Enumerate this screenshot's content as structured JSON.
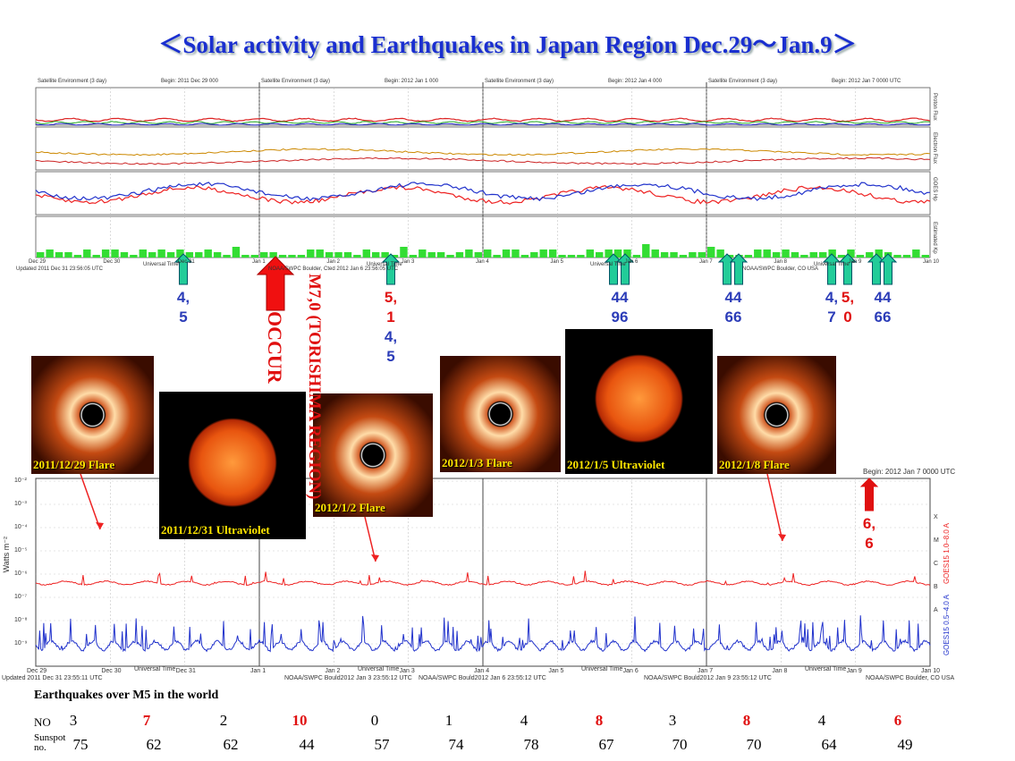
{
  "title": "＜Solar activity and Earthquakes  in Japan Region Dec.29～Jan.9＞",
  "top_panel": {
    "headers": [
      "Satellite Environment (3 day)",
      "Begin:  2011 Dec 29 000",
      "Satellite Environment (3 day)",
      "Begin:  2012 Jan 1 000",
      "Satellite Environment (3 day)",
      "Begin:  2012 Jan 4 000",
      "Satellite Environment (3 day)",
      "Begin:  2012 Jan 7 0000 UTC"
    ],
    "row_labels": [
      "Proton Flux",
      "Electron Flux",
      "GOES Hp",
      "Estimated Kp"
    ],
    "footers": [
      "Updated 2011 Dec 31 23:56:05 UTC",
      "NOAA/SWPC Boulder, Cted 2012 Jan  6 23:56:05 UTC",
      "NOAA/SWPC Boulder, CO USA"
    ],
    "axis_label": "Universal Time"
  },
  "days": [
    "Dec 29",
    "Dec 30",
    "Dec 31",
    "Jan 1",
    "Jan 2",
    "Jan 3",
    "Jan 4",
    "Jan 5",
    "Jan 6",
    "Jan 7",
    "Jan 8",
    "Jan 9",
    "Jan 10"
  ],
  "quake_marks": [
    {
      "lines": [
        "4,",
        "5"
      ],
      "line_colors": [
        "#2b3cb8",
        "#2b3cb8"
      ]
    },
    {
      "lines": [
        "5,",
        "1",
        "4,",
        "5"
      ],
      "line_colors": [
        "#e01010",
        "#e01010",
        "#2b3cb8",
        "#2b3cb8"
      ]
    },
    {
      "lines": [
        "44",
        "96"
      ],
      "line_colors": [
        "#2b3cb8",
        "#2b3cb8"
      ]
    },
    {
      "lines": [
        "44",
        "66"
      ],
      "line_colors": [
        "#2b3cb8",
        "#2b3cb8"
      ]
    },
    {
      "lines": [
        "4,",
        "7"
      ],
      "line_colors": [
        "#2b3cb8",
        "#2b3cb8"
      ]
    },
    {
      "lines": [
        "5,",
        "0"
      ],
      "line_colors": [
        "#e01010",
        "#e01010"
      ]
    },
    {
      "lines": [
        "44",
        "66"
      ],
      "line_colors": [
        "#2b3cb8",
        "#2b3cb8"
      ]
    },
    {
      "lines": [
        "6,",
        "6"
      ],
      "line_colors": [
        "#e01010",
        "#e01010"
      ]
    }
  ],
  "big_quake": {
    "label": "M7,0 (TORISHIMA REGION)",
    "note": "OCCUR"
  },
  "images": [
    "2011/12/29 Flare",
    "2011/12/31 Ultraviolet",
    "2012/1/2 Flare",
    "2012/1/3 Flare",
    "2012/1/5 Ultraviolet",
    "2012/1/8 Flare"
  ],
  "bottom_panel": {
    "begin": "Begin:  2012 Jan 7 0000 UTC",
    "y_label": "Watts m⁻²",
    "y_ticks": [
      "10⁻²",
      "10⁻³",
      "10⁻⁴",
      "10⁻⁵",
      "10⁻⁶",
      "10⁻⁷",
      "10⁻⁸",
      "10⁻⁹"
    ],
    "classes": [
      "X",
      "M",
      "C",
      "B",
      "A"
    ],
    "series_labels": [
      "GOES15 1.0–8.0 A",
      "GOES15 0.5–4.0 A"
    ],
    "axis_label": "Universal Time",
    "footers": [
      "Updated 2011 Dec 31 23:55:11 UTC",
      "NOAA/SWPC Bould2012 Jan  3 23:55:12 UTC",
      "NOAA/SWPC Bould2012 Jan  6 23:55:12 UTC",
      "NOAA/SWPC Bould2012 Jan  9 23:55:12 UTC",
      "NOAA/SWPC Boulder, CO USA"
    ]
  },
  "table": {
    "heading": "Earthquakes  over M5 in the world",
    "row_labels": [
      "NO",
      "Sunspot no."
    ],
    "quakes": [
      3,
      7,
      2,
      10,
      0,
      1,
      4,
      8,
      3,
      8,
      4,
      6
    ],
    "quake_colors": [
      "#000",
      "#e01010",
      "#000",
      "#e01010",
      "#000",
      "#000",
      "#000",
      "#e01010",
      "#000",
      "#e01010",
      "#000",
      "#e01010"
    ],
    "sunspots": [
      75,
      62,
      62,
      44,
      57,
      74,
      78,
      67,
      70,
      70,
      64,
      49
    ]
  }
}
